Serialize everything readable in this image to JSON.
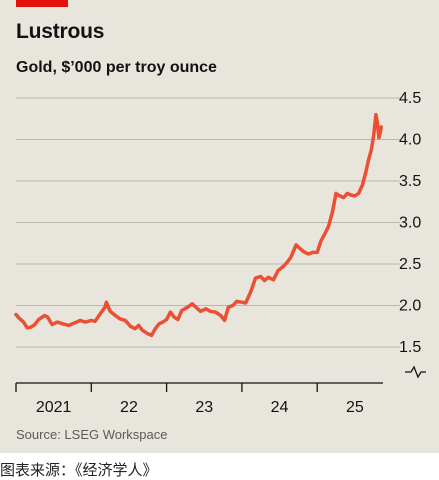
{
  "header": {
    "title": "Lustrous",
    "subtitle": "Gold, $’000 per troy ounce"
  },
  "footer": {
    "source": "Source: LSEG Workspace",
    "caption": "图表来源：《经济学人》"
  },
  "colors": {
    "background": "#e8e6dc",
    "accent": "#e3120b",
    "line": "#eb4f34",
    "grid": "#b8b8b0"
  },
  "chart_data": {
    "type": "line",
    "title": "Lustrous",
    "subtitle": "Gold, $’000 per troy ounce",
    "y_axis": {
      "position": "right",
      "ticks": [
        1.5,
        2.0,
        2.5,
        3.0,
        3.5,
        4.0,
        4.5
      ],
      "tick_labels": [
        "1.5",
        "2.0",
        "2.5",
        "3.0",
        "3.5",
        "4.0",
        "4.5"
      ],
      "ylim": [
        1.5,
        4.5
      ],
      "broken_axis_marker": true
    },
    "x_axis": {
      "ticks": [
        "2021",
        "22",
        "23",
        "24",
        "25"
      ],
      "xlim": [
        2021,
        2025.85
      ]
    },
    "grid": "horizontal",
    "series": [
      {
        "values": [
          [
            2021.0,
            1.89
          ],
          [
            2021.05,
            1.84
          ],
          [
            2021.1,
            1.8
          ],
          [
            2021.15,
            1.73
          ],
          [
            2021.2,
            1.74
          ],
          [
            2021.25,
            1.77
          ],
          [
            2021.3,
            1.83
          ],
          [
            2021.38,
            1.88
          ],
          [
            2021.42,
            1.86
          ],
          [
            2021.48,
            1.77
          ],
          [
            2021.55,
            1.8
          ],
          [
            2021.62,
            1.78
          ],
          [
            2021.7,
            1.76
          ],
          [
            2021.78,
            1.79
          ],
          [
            2021.85,
            1.82
          ],
          [
            2021.92,
            1.8
          ],
          [
            2022.0,
            1.82
          ],
          [
            2022.05,
            1.81
          ],
          [
            2022.12,
            1.9
          ],
          [
            2022.18,
            1.98
          ],
          [
            2022.2,
            2.04
          ],
          [
            2022.25,
            1.93
          ],
          [
            2022.32,
            1.88
          ],
          [
            2022.38,
            1.84
          ],
          [
            2022.45,
            1.82
          ],
          [
            2022.52,
            1.75
          ],
          [
            2022.58,
            1.72
          ],
          [
            2022.63,
            1.76
          ],
          [
            2022.68,
            1.7
          ],
          [
            2022.75,
            1.66
          ],
          [
            2022.8,
            1.64
          ],
          [
            2022.85,
            1.72
          ],
          [
            2022.9,
            1.78
          ],
          [
            2022.95,
            1.8
          ],
          [
            2023.0,
            1.83
          ],
          [
            2023.05,
            1.92
          ],
          [
            2023.1,
            1.86
          ],
          [
            2023.15,
            1.83
          ],
          [
            2023.2,
            1.94
          ],
          [
            2023.28,
            1.98
          ],
          [
            2023.34,
            2.02
          ],
          [
            2023.4,
            1.97
          ],
          [
            2023.45,
            1.93
          ],
          [
            2023.52,
            1.96
          ],
          [
            2023.58,
            1.93
          ],
          [
            2023.65,
            1.92
          ],
          [
            2023.72,
            1.88
          ],
          [
            2023.77,
            1.82
          ],
          [
            2023.82,
            1.98
          ],
          [
            2023.88,
            2.0
          ],
          [
            2023.93,
            2.05
          ],
          [
            2024.0,
            2.04
          ],
          [
            2024.05,
            2.03
          ],
          [
            2024.12,
            2.17
          ],
          [
            2024.18,
            2.33
          ],
          [
            2024.25,
            2.35
          ],
          [
            2024.3,
            2.3
          ],
          [
            2024.35,
            2.34
          ],
          [
            2024.42,
            2.31
          ],
          [
            2024.48,
            2.42
          ],
          [
            2024.55,
            2.47
          ],
          [
            2024.6,
            2.52
          ],
          [
            2024.65,
            2.58
          ],
          [
            2024.72,
            2.73
          ],
          [
            2024.78,
            2.68
          ],
          [
            2024.82,
            2.65
          ],
          [
            2024.88,
            2.62
          ],
          [
            2024.94,
            2.64
          ],
          [
            2025.0,
            2.64
          ],
          [
            2025.05,
            2.78
          ],
          [
            2025.1,
            2.86
          ],
          [
            2025.15,
            2.95
          ],
          [
            2025.2,
            3.12
          ],
          [
            2025.25,
            3.35
          ],
          [
            2025.3,
            3.32
          ],
          [
            2025.35,
            3.3
          ],
          [
            2025.4,
            3.35
          ],
          [
            2025.45,
            3.33
          ],
          [
            2025.5,
            3.32
          ],
          [
            2025.55,
            3.35
          ],
          [
            2025.6,
            3.45
          ],
          [
            2025.65,
            3.62
          ],
          [
            2025.68,
            3.75
          ],
          [
            2025.72,
            3.88
          ],
          [
            2025.75,
            4.05
          ],
          [
            2025.78,
            4.3
          ],
          [
            2025.8,
            4.2
          ],
          [
            2025.82,
            4.02
          ],
          [
            2025.84,
            4.1
          ],
          [
            2025.85,
            4.15
          ]
        ]
      }
    ]
  }
}
